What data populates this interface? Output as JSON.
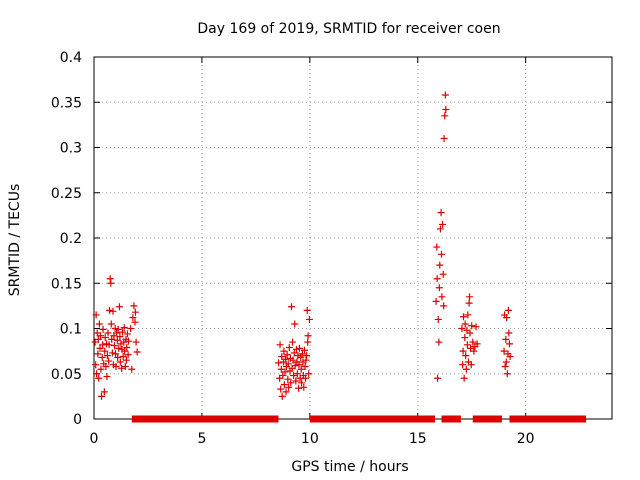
{
  "chart_data": {
    "type": "scatter",
    "title": "Day 169 of 2019, SRMTID for receiver coen",
    "xlabel": "GPS time / hours",
    "ylabel": "SRMTID / TECUs",
    "xlim": [
      0,
      24
    ],
    "ylim": [
      0,
      0.4
    ],
    "grid": true,
    "marker": "+",
    "marker_color": "#dd0000",
    "x_ticks": [
      0,
      5,
      10,
      15,
      20
    ],
    "x_tick_labels": [
      "0",
      "5",
      "10",
      "15",
      "20"
    ],
    "y_ticks": [
      0,
      0.05,
      0.1,
      0.15,
      0.2,
      0.25,
      0.3,
      0.35,
      0.4
    ],
    "y_tick_labels": [
      "0",
      "0.05",
      "0.1",
      "0.15",
      "0.2",
      "0.25",
      "0.3",
      "0.35",
      "0.4"
    ],
    "series": [
      {
        "name": "SRMTID",
        "points": [
          [
            0.05,
            0.085
          ],
          [
            0.08,
            0.06
          ],
          [
            0.1,
            0.115
          ],
          [
            0.12,
            0.05
          ],
          [
            0.15,
            0.095
          ],
          [
            0.18,
            0.072
          ],
          [
            0.2,
            0.088
          ],
          [
            0.22,
            0.045
          ],
          [
            0.25,
            0.105
          ],
          [
            0.28,
            0.078
          ],
          [
            0.3,
            0.092
          ],
          [
            0.32,
            0.055
          ],
          [
            0.35,
            0.025
          ],
          [
            0.38,
            0.068
          ],
          [
            0.4,
            0.082
          ],
          [
            0.42,
            0.099
          ],
          [
            0.45,
            0.061
          ],
          [
            0.48,
            0.03
          ],
          [
            0.5,
            0.075
          ],
          [
            0.52,
            0.09
          ],
          [
            0.55,
            0.058
          ],
          [
            0.58,
            0.083
          ],
          [
            0.6,
            0.047
          ],
          [
            0.62,
            0.07
          ],
          [
            0.65,
            0.095
          ],
          [
            0.68,
            0.064
          ],
          [
            0.7,
            0.082
          ],
          [
            0.72,
            0.12
          ],
          [
            0.75,
            0.155
          ],
          [
            0.78,
            0.15
          ],
          [
            0.8,
            0.105
          ],
          [
            0.82,
            0.088
          ],
          [
            0.85,
            0.073
          ],
          [
            0.88,
            0.119
          ],
          [
            0.9,
            0.06
          ],
          [
            0.92,
            0.092
          ],
          [
            0.95,
            0.081
          ],
          [
            0.98,
            0.1
          ],
          [
            1.0,
            0.072
          ],
          [
            1.02,
            0.058
          ],
          [
            1.05,
            0.095
          ],
          [
            1.08,
            0.087
          ],
          [
            1.1,
            0.068
          ],
          [
            1.12,
            0.099
          ],
          [
            1.15,
            0.078
          ],
          [
            1.18,
            0.124
          ],
          [
            1.2,
            0.091
          ],
          [
            1.22,
            0.063
          ],
          [
            1.25,
            0.083
          ],
          [
            1.28,
            0.056
          ],
          [
            1.3,
            0.077
          ],
          [
            1.32,
            0.096
          ],
          [
            1.35,
            0.069
          ],
          [
            1.38,
            0.085
          ],
          [
            1.4,
            0.101
          ],
          [
            1.42,
            0.075
          ],
          [
            1.45,
            0.058
          ],
          [
            1.48,
            0.088
          ],
          [
            1.5,
            0.065
          ],
          [
            1.52,
            0.079
          ],
          [
            1.55,
            0.094
          ],
          [
            1.58,
            0.071
          ],
          [
            1.6,
            0.086
          ],
          [
            1.7,
            0.1
          ],
          [
            1.75,
            0.055
          ],
          [
            1.8,
            0.112
          ],
          [
            1.85,
            0.125
          ],
          [
            1.9,
            0.107
          ],
          [
            1.92,
            0.118
          ],
          [
            1.95,
            0.085
          ],
          [
            2.0,
            0.074
          ],
          [
            8.55,
            0.062
          ],
          [
            8.6,
            0.045
          ],
          [
            8.62,
            0.082
          ],
          [
            8.65,
            0.033
          ],
          [
            8.68,
            0.055
          ],
          [
            8.7,
            0.069
          ],
          [
            8.72,
            0.025
          ],
          [
            8.75,
            0.048
          ],
          [
            8.78,
            0.063
          ],
          [
            8.8,
            0.075
          ],
          [
            8.82,
            0.038
          ],
          [
            8.85,
            0.052
          ],
          [
            8.88,
            0.066
          ],
          [
            8.9,
            0.03
          ],
          [
            8.92,
            0.058
          ],
          [
            8.95,
            0.071
          ],
          [
            8.98,
            0.044
          ],
          [
            9.0,
            0.061
          ],
          [
            9.02,
            0.035
          ],
          [
            9.05,
            0.079
          ],
          [
            9.08,
            0.053
          ],
          [
            9.1,
            0.067
          ],
          [
            9.12,
            0.04
          ],
          [
            9.15,
            0.124
          ],
          [
            9.18,
            0.056
          ],
          [
            9.2,
            0.085
          ],
          [
            9.22,
            0.065
          ],
          [
            9.25,
            0.048
          ],
          [
            9.28,
            0.073
          ],
          [
            9.3,
            0.105
          ],
          [
            9.32,
            0.059
          ],
          [
            9.35,
            0.042
          ],
          [
            9.38,
            0.077
          ],
          [
            9.4,
            0.063
          ],
          [
            9.42,
            0.05
          ],
          [
            9.45,
            0.07
          ],
          [
            9.48,
            0.034
          ],
          [
            9.5,
            0.06
          ],
          [
            9.52,
            0.078
          ],
          [
            9.55,
            0.045
          ],
          [
            9.58,
            0.068
          ],
          [
            9.6,
            0.055
          ],
          [
            9.62,
            0.04
          ],
          [
            9.65,
            0.072
          ],
          [
            9.68,
            0.063
          ],
          [
            9.7,
            0.048
          ],
          [
            9.72,
            0.035
          ],
          [
            9.75,
            0.076
          ],
          [
            9.78,
            0.058
          ],
          [
            9.8,
            0.045
          ],
          [
            9.82,
            0.065
          ],
          [
            9.85,
            0.07
          ],
          [
            9.88,
            0.12
          ],
          [
            9.9,
            0.085
          ],
          [
            9.92,
            0.092
          ],
          [
            9.95,
            0.05
          ],
          [
            9.98,
            0.11
          ],
          [
            15.85,
            0.13
          ],
          [
            15.88,
            0.19
          ],
          [
            15.9,
            0.155
          ],
          [
            15.92,
            0.045
          ],
          [
            15.95,
            0.11
          ],
          [
            15.98,
            0.085
          ],
          [
            16.0,
            0.145
          ],
          [
            16.02,
            0.17
          ],
          [
            16.05,
            0.21
          ],
          [
            16.08,
            0.228
          ],
          [
            16.1,
            0.182
          ],
          [
            16.12,
            0.135
          ],
          [
            16.15,
            0.215
          ],
          [
            16.18,
            0.16
          ],
          [
            16.2,
            0.125
          ],
          [
            16.22,
            0.31
          ],
          [
            16.25,
            0.335
          ],
          [
            16.28,
            0.358
          ],
          [
            16.3,
            0.342
          ],
          [
            17.05,
            0.1
          ],
          [
            17.08,
            0.06
          ],
          [
            17.1,
            0.075
          ],
          [
            17.12,
            0.113
          ],
          [
            17.15,
            0.045
          ],
          [
            17.18,
            0.09
          ],
          [
            17.2,
            0.105
          ],
          [
            17.22,
            0.07
          ],
          [
            17.25,
            0.055
          ],
          [
            17.28,
            0.098
          ],
          [
            17.3,
            0.082
          ],
          [
            17.32,
            0.115
          ],
          [
            17.35,
            0.063
          ],
          [
            17.38,
            0.128
          ],
          [
            17.4,
            0.135
          ],
          [
            17.42,
            0.095
          ],
          [
            17.45,
            0.078
          ],
          [
            17.48,
            0.06
          ],
          [
            17.5,
            0.103
          ],
          [
            17.55,
            0.085
          ],
          [
            17.6,
            0.075
          ],
          [
            17.65,
            0.08
          ],
          [
            17.7,
            0.102
          ],
          [
            17.75,
            0.083
          ],
          [
            19.0,
            0.075
          ],
          [
            19.02,
            0.115
          ],
          [
            19.05,
            0.058
          ],
          [
            19.08,
            0.088
          ],
          [
            19.1,
            0.063
          ],
          [
            19.12,
            0.112
          ],
          [
            19.15,
            0.05
          ],
          [
            19.18,
            0.072
          ],
          [
            19.2,
            0.12
          ],
          [
            19.22,
            0.095
          ],
          [
            19.25,
            0.083
          ],
          [
            19.28,
            0.069
          ]
        ],
        "zero_segments": [
          [
            1.75,
            8.55
          ],
          [
            10.0,
            15.8
          ],
          [
            16.1,
            17.0
          ],
          [
            17.55,
            18.9
          ],
          [
            19.25,
            22.8
          ]
        ],
        "zero_segment_value": 0
      }
    ]
  }
}
